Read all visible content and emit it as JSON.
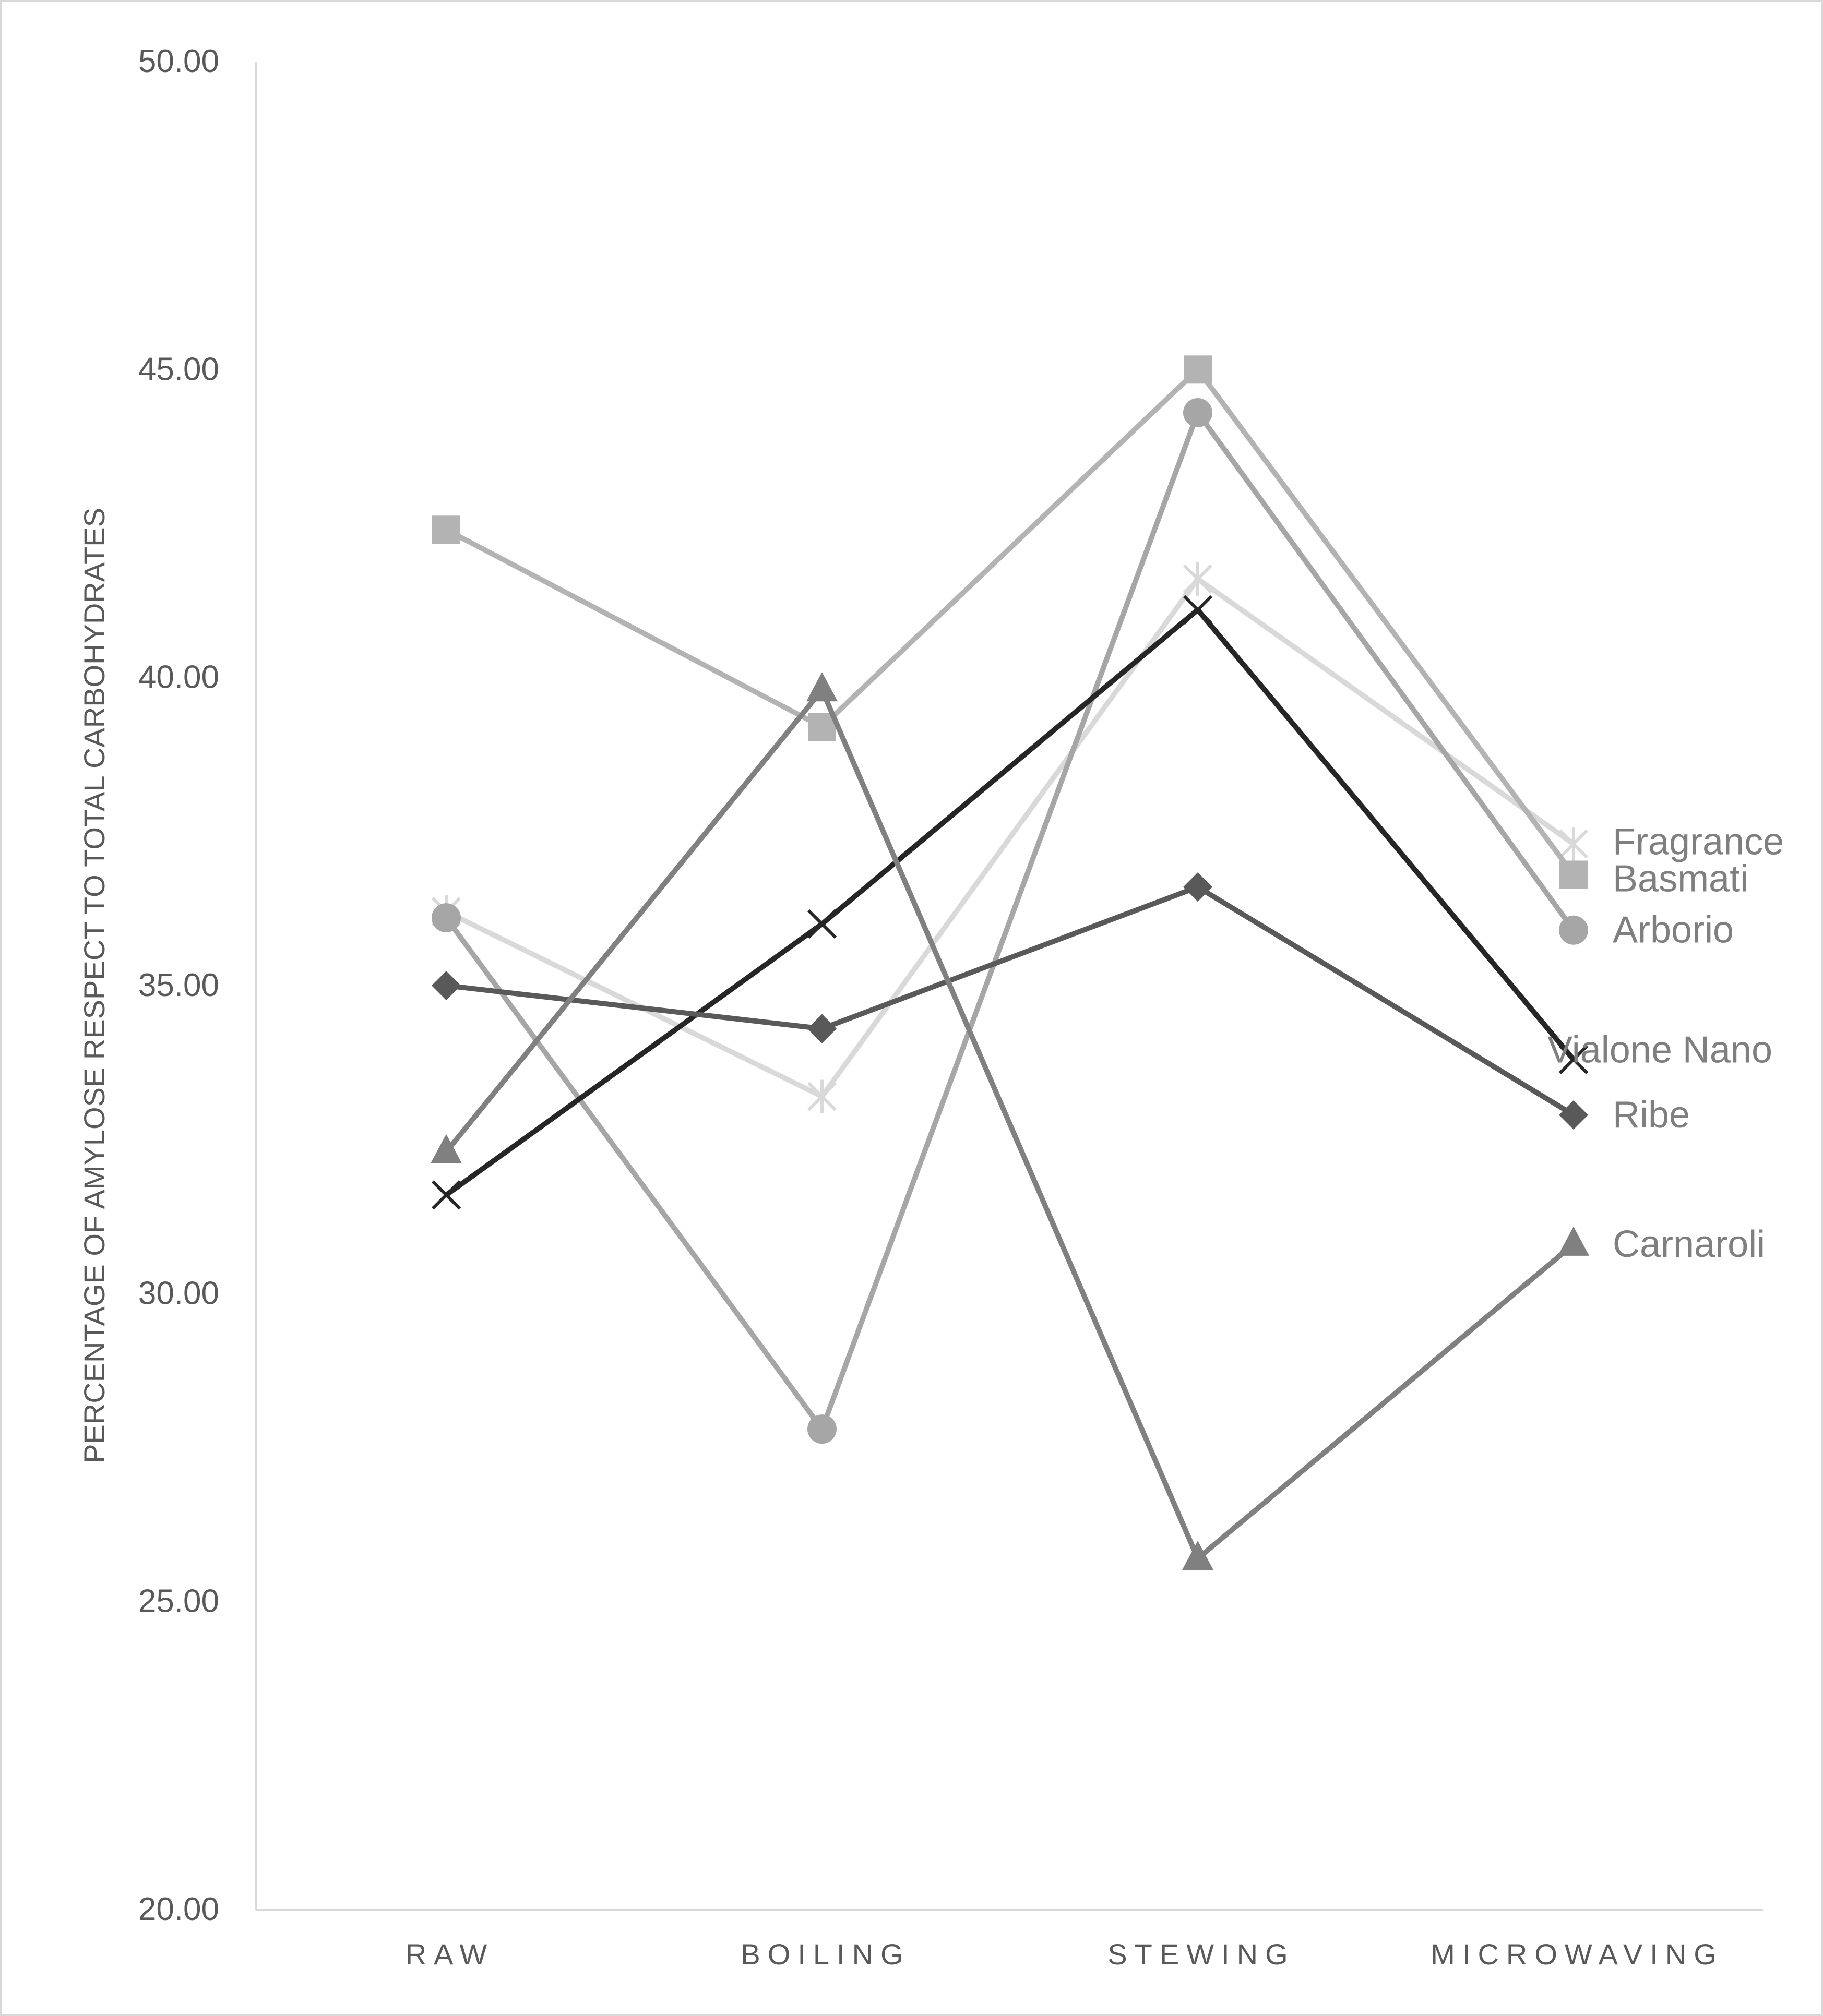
{
  "chart_data": {
    "type": "line",
    "title": "",
    "xlabel": "",
    "ylabel": "PERCENTAGE OF AMYLOSE RESPECT TO TOTAL CARBOHYDRATES",
    "categories": [
      "RAW",
      "BOILING",
      "STEWING",
      "MICROWAVING"
    ],
    "ylim": [
      20,
      50
    ],
    "yticks": [
      "20.00",
      "25.00",
      "30.00",
      "35.00",
      "40.00",
      "45.00",
      "50.00"
    ],
    "grid": false,
    "legend": "end-of-line labels",
    "series": [
      {
        "name": "Fragrance",
        "values": [
          36.2,
          33.2,
          41.6,
          37.3
        ],
        "color": "#d9d9d9",
        "marker": "star"
      },
      {
        "name": "Basmati",
        "values": [
          42.4,
          39.2,
          45.0,
          36.8
        ],
        "color": "#b3b3b3",
        "marker": "square"
      },
      {
        "name": "Arborio",
        "values": [
          36.1,
          27.8,
          44.3,
          35.9
        ],
        "color": "#a6a6a6",
        "marker": "circle"
      },
      {
        "name": "Vialone Nano",
        "values": [
          31.6,
          36.0,
          41.1,
          33.8
        ],
        "color": "#262626",
        "marker": "x"
      },
      {
        "name": "Ribe",
        "values": [
          35.0,
          34.3,
          36.6,
          32.9
        ],
        "color": "#595959",
        "marker": "diamond"
      },
      {
        "name": "Carnaroli",
        "values": [
          32.3,
          39.8,
          25.7,
          30.8
        ],
        "color": "#808080",
        "marker": "triangle"
      }
    ]
  }
}
